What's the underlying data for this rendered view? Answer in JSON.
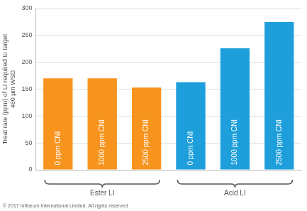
{
  "chart_data": {
    "type": "bar",
    "y_label": [
      "Treat rate (ppm) of LI required to target",
      "460 µm WSD"
    ],
    "categories": [
      "0 ppm CNI",
      "1000 ppm CNI",
      "2500 ppm CNI",
      "0 ppm CNI",
      "1000 ppm CNI",
      "2500 ppm CNI"
    ],
    "series": [
      {
        "name": "Ester LI",
        "color": "#f7941d",
        "values": [
          170,
          170,
          153,
          null,
          null,
          null
        ]
      },
      {
        "name": "Acid LI",
        "color": "#1e9fdb",
        "values": [
          null,
          null,
          null,
          163,
          226,
          275
        ]
      }
    ],
    "ylim": [
      0,
      300
    ],
    "yticks": [
      0,
      50,
      100,
      150,
      200,
      250,
      300
    ],
    "grid": true,
    "annotations": [
      "© 2017 Infineum International Limited. All rights reserved"
    ]
  }
}
